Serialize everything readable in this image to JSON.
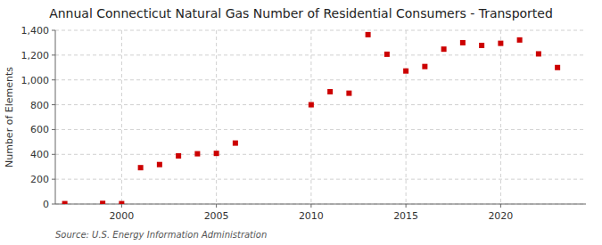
{
  "chart_data": {
    "type": "scatter",
    "title": "Annual Connecticut Natural Gas Number of Residential Consumers - Transported",
    "y_label": "Number of Elements",
    "source": "Source: U.S. Energy Information Administration",
    "x": [
      1997,
      1999,
      2000,
      2001,
      2002,
      2003,
      2004,
      2005,
      2006,
      2010,
      2011,
      2012,
      2013,
      2014,
      2015,
      2016,
      2017,
      2018,
      2019,
      2020,
      2021,
      2022,
      2023
    ],
    "values": [
      3,
      5,
      3,
      293,
      318,
      388,
      405,
      408,
      491,
      800,
      905,
      893,
      1365,
      1207,
      1072,
      1108,
      1248,
      1300,
      1278,
      1295,
      1322,
      1210,
      1100
    ],
    "color": "#cc0000",
    "marker": "square",
    "xlim": [
      1996.5,
      2024.5
    ],
    "ylim": [
      0,
      1400
    ],
    "xticks": [
      2000,
      2005,
      2010,
      2015,
      2020
    ],
    "yticks": [
      0,
      200,
      400,
      600,
      800,
      {
        "value": 1000,
        "label": "1,000"
      },
      {
        "value": 1200,
        "label": "1,200"
      },
      {
        "value": 1400,
        "label": "1,400"
      }
    ],
    "grid": true
  }
}
